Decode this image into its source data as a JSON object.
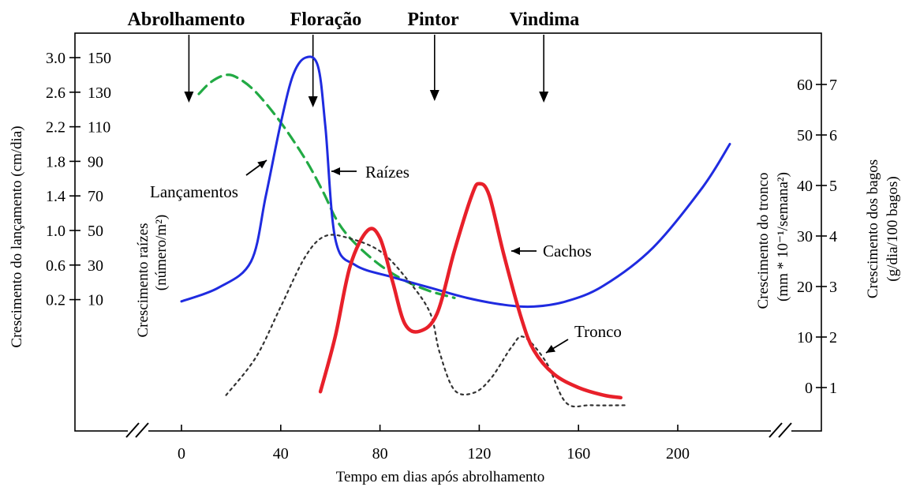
{
  "chart_data": {
    "type": "line",
    "title": "",
    "xlabel": "Tempo em dias após abrolhamento",
    "x_ticks": [
      0,
      40,
      80,
      120,
      160,
      200
    ],
    "xlim": [
      -37,
      235
    ],
    "stages": [
      {
        "name": "Abrolhamento",
        "day": 3
      },
      {
        "name": "Floração",
        "day": 53
      },
      {
        "name": "Pintor",
        "day": 102
      },
      {
        "name": "Vindima",
        "day": 146
      }
    ],
    "left_axes": [
      {
        "label": "Crescimento do lançamento (cm/dia)",
        "ticks": [
          "3.0",
          "2.6",
          "2.2",
          "1.8",
          "1.4",
          "1.0",
          "0.6",
          "0.2"
        ]
      },
      {
        "label_line1": "Crescimento raízes",
        "label_line2": "(número/m²)",
        "ticks": [
          "150",
          "130",
          "110",
          "90",
          "70",
          "50",
          "30",
          "10"
        ]
      }
    ],
    "right_axes": [
      {
        "label_line1": "Crescimento do tronco",
        "label_line2": "(mm * 10⁻¹/semana²)",
        "ticks": [
          "60",
          "50",
          "40",
          "30",
          "20",
          "10",
          "0"
        ]
      },
      {
        "label_line1": "Crescimento dos bagos",
        "label_line2": "(g/dia/100 bagos)",
        "ticks": [
          "7",
          "6",
          "5",
          "4",
          "3",
          "2",
          "1"
        ]
      }
    ],
    "series": [
      {
        "name": "Lançamentos",
        "color": "#22aa44",
        "dash": "dashed",
        "axis": "Crescimento do lançamento (cm/dia)",
        "points": [
          [
            7,
            2.58
          ],
          [
            12,
            2.72
          ],
          [
            18,
            2.8
          ],
          [
            23,
            2.76
          ],
          [
            30,
            2.6
          ],
          [
            40,
            2.25
          ],
          [
            50,
            1.82
          ],
          [
            57,
            1.45
          ],
          [
            63,
            1.1
          ],
          [
            70,
            0.85
          ],
          [
            80,
            0.6
          ],
          [
            90,
            0.42
          ],
          [
            100,
            0.3
          ],
          [
            110,
            0.22
          ]
        ]
      },
      {
        "name": "Raízes",
        "color": "#1f2be0",
        "dash": "solid",
        "axis": "Crescimento raízes (número/m²)",
        "points": [
          [
            0,
            9
          ],
          [
            15,
            17
          ],
          [
            28,
            32
          ],
          [
            34,
            70
          ],
          [
            40,
            112
          ],
          [
            45,
            140
          ],
          [
            50,
            150
          ],
          [
            55,
            145
          ],
          [
            58,
            110
          ],
          [
            62,
            45
          ],
          [
            70,
            30
          ],
          [
            85,
            23
          ],
          [
            100,
            17
          ],
          [
            115,
            11
          ],
          [
            130,
            7
          ],
          [
            142,
            6
          ],
          [
            155,
            9
          ],
          [
            170,
            18
          ],
          [
            190,
            40
          ],
          [
            210,
            75
          ],
          [
            221,
            100
          ]
        ]
      },
      {
        "name": "Tronco",
        "color": "#333333",
        "dash": "dotted",
        "axis": "Crescimento do tronco (mm * 10⁻¹/semana²)",
        "points": [
          [
            18,
            -1.5
          ],
          [
            30,
            6
          ],
          [
            40,
            16
          ],
          [
            50,
            26
          ],
          [
            58,
            30
          ],
          [
            68,
            29.5
          ],
          [
            80,
            27
          ],
          [
            90,
            22
          ],
          [
            100,
            15
          ],
          [
            104,
            7
          ],
          [
            110,
            -0.5
          ],
          [
            118,
            -1
          ],
          [
            125,
            2
          ],
          [
            133,
            8
          ],
          [
            138,
            10
          ],
          [
            147,
            5
          ],
          [
            155,
            -3
          ],
          [
            165,
            -3.5
          ],
          [
            180,
            -3.5
          ]
        ]
      },
      {
        "name": "Cachos",
        "color": "#e8202a",
        "dash": "solid",
        "axis": "Crescimento dos bagos (g/dia/100 bagos)",
        "points": [
          [
            56,
            0.9
          ],
          [
            62,
            2.0
          ],
          [
            68,
            3.4
          ],
          [
            75,
            4.1
          ],
          [
            80,
            3.95
          ],
          [
            85,
            3.1
          ],
          [
            90,
            2.25
          ],
          [
            96,
            2.1
          ],
          [
            103,
            2.45
          ],
          [
            110,
            3.7
          ],
          [
            117,
            4.8
          ],
          [
            120,
            5.03
          ],
          [
            124,
            4.8
          ],
          [
            130,
            3.6
          ],
          [
            137,
            2.35
          ],
          [
            142,
            1.72
          ],
          [
            150,
            1.25
          ],
          [
            160,
            0.98
          ],
          [
            170,
            0.83
          ],
          [
            177,
            0.78
          ]
        ]
      }
    ]
  }
}
